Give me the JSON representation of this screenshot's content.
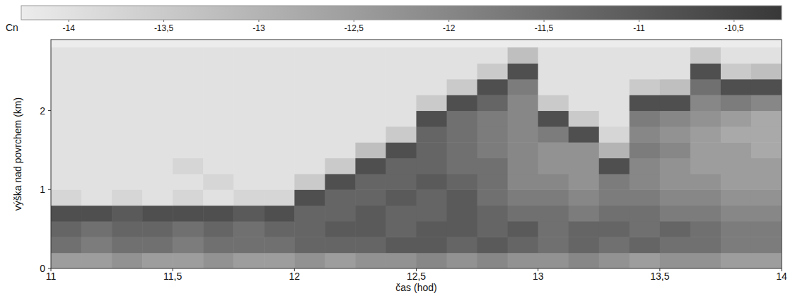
{
  "chart_data": {
    "type": "heatmap",
    "x_label": "čas (hod)",
    "y_label": "výška nad povrchem (km)",
    "color_label": "Cn",
    "xlim": [
      11,
      14
    ],
    "ylim": [
      0,
      2.9
    ],
    "xticks": [
      11,
      {
        "value": 11.5,
        "label": "11,5"
      },
      12,
      {
        "value": 12.5,
        "label": "12,5"
      },
      13,
      {
        "value": 13.5,
        "label": "13,5"
      },
      14
    ],
    "yticks": [
      0,
      1,
      2
    ],
    "color_range": [
      -14.25,
      -10.25
    ],
    "color_ticks": [
      -14,
      {
        "value": -13.5,
        "label": "-13,5"
      },
      -13,
      {
        "value": -12.5,
        "label": "-12,5"
      },
      -12,
      {
        "value": -11.5,
        "label": "-11,5"
      },
      -11,
      {
        "value": -10.5,
        "label": "-10,5"
      }
    ],
    "colors": [
      "#ececec",
      "#383838"
    ],
    "x_edges": [
      11,
      11.125,
      11.25,
      11.375,
      11.5,
      11.625,
      11.75,
      11.875,
      12,
      12.125,
      12.25,
      12.375,
      12.5,
      12.625,
      12.75,
      12.875,
      13,
      13.125,
      13.25,
      13.375,
      13.5,
      13.625,
      13.75,
      13.875,
      14
    ],
    "y_edges": [
      0,
      0.2,
      0.4,
      0.6,
      0.8,
      1.0,
      1.2,
      1.4,
      1.6,
      1.8,
      2.0,
      2.2,
      2.4,
      2.6,
      2.8
    ],
    "cells": [
      [
        -12.5,
        -12.5,
        -12.25,
        -12.5,
        -12.5,
        -12.25,
        -12.5,
        -12.5,
        -12.25,
        -12.5,
        -12.25,
        -12.25,
        -12,
        -12.25,
        -12,
        -12.25,
        -12.25,
        -12,
        -12.25,
        -12.5,
        -12.25,
        -12.25,
        -12.5,
        -12.5
      ],
      [
        -11.5,
        -11.75,
        -11.5,
        -11.5,
        -11.75,
        -11.5,
        -11.5,
        -11.5,
        -11.25,
        -11.25,
        -11.25,
        -11,
        -11,
        -11.25,
        -11,
        -11.25,
        -11.5,
        -11.25,
        -11.5,
        -11.25,
        -11.5,
        -11.5,
        -11.75,
        -11.75
      ],
      [
        -11.25,
        -11.5,
        -11.25,
        -11.25,
        -11.5,
        -11.25,
        -11.5,
        -11.25,
        -11.25,
        -11,
        -11,
        -11.25,
        -11,
        -11,
        -11.25,
        -11,
        -11.5,
        -11.25,
        -11.25,
        -11.5,
        -11.25,
        -11.5,
        -11.75,
        -11.75
      ],
      [
        -10.75,
        -10.75,
        -11,
        -10.75,
        -10.75,
        -10.75,
        -11,
        -10.75,
        -11.25,
        -11.25,
        -11,
        -11.25,
        -11.25,
        -11,
        -11.25,
        -11.5,
        -11.5,
        -11.75,
        -11.5,
        -11.5,
        -11.75,
        -11.75,
        -12,
        -12
      ],
      [
        -13.75,
        -14,
        -13.75,
        -14,
        -13.75,
        -14,
        -13.75,
        -13.75,
        -10.75,
        -11.25,
        -11.25,
        -11,
        -11.25,
        -11,
        -11.5,
        -11.75,
        -11.75,
        -12,
        -11.75,
        -11.75,
        -12,
        -12,
        -12.25,
        -12.25
      ],
      [
        -14,
        -14,
        -14,
        -14,
        -14,
        -13.75,
        -14,
        -14,
        -13.5,
        -10.75,
        -11.25,
        -11.25,
        -11,
        -11.25,
        -11.5,
        -12,
        -12,
        -12.25,
        -11.75,
        -12,
        -12.25,
        -12.25,
        -12.5,
        -12.5
      ],
      [
        -14,
        -14,
        -14,
        -14,
        -13.75,
        -14,
        -14,
        -14,
        -14,
        -13.5,
        -10.75,
        -11.25,
        -11.25,
        -11.5,
        -11.5,
        -12,
        -12.25,
        -12.25,
        -10.75,
        -12,
        -12.25,
        -12.5,
        -12.5,
        -12.5
      ],
      [
        -14,
        -14,
        -14,
        -14,
        -14,
        -14,
        -14,
        -14,
        -14,
        -14,
        -13.25,
        -10.75,
        -11.25,
        -11.5,
        -11.75,
        -12,
        -12.25,
        -12.25,
        -13,
        -11.75,
        -12,
        -12.5,
        -12.5,
        -12.75
      ],
      [
        -14,
        -14,
        -14,
        -14,
        -14,
        -14,
        -14,
        -14,
        -14,
        -14,
        -14,
        -13.5,
        -11.25,
        -11.5,
        -11.75,
        -12,
        -11.75,
        -10.75,
        -13.75,
        -12,
        -12.25,
        -12.5,
        -12.75,
        -12.75
      ],
      [
        -14,
        -14,
        -14,
        -14,
        -14,
        -14,
        -14,
        -14,
        -14,
        -14,
        -14,
        -14,
        -10.75,
        -11.5,
        -11.75,
        -12,
        -10.75,
        -13.5,
        -14,
        -11.75,
        -12,
        -12.25,
        -12.5,
        -12.75
      ],
      [
        -14,
        -14,
        -14,
        -14,
        -14,
        -14,
        -14,
        -14,
        -14,
        -14,
        -14,
        -14,
        -13.5,
        -10.75,
        -11.25,
        -12,
        -13.5,
        -14,
        -14,
        -10.75,
        -10.75,
        -12,
        -11.75,
        -12
      ],
      [
        -14,
        -14,
        -14,
        -14,
        -14,
        -14,
        -14,
        -14,
        -14,
        -14,
        -14,
        -14,
        -14,
        -13.5,
        -10.75,
        -11.75,
        -14,
        -14,
        -14,
        -13.5,
        -13.25,
        -11.5,
        -10.75,
        -10.75
      ],
      [
        -14,
        -14,
        -14,
        -14,
        -14,
        -14,
        -14,
        -14,
        -14,
        -14,
        -14,
        -14,
        -14,
        -14,
        -13.5,
        -10.75,
        -14,
        -14,
        -14,
        -14,
        -14,
        -10.75,
        -13.5,
        -13.25
      ],
      [
        -14,
        -14,
        -14,
        -14,
        -14,
        -14,
        -14,
        -14,
        -14,
        -14,
        -14,
        -14,
        -14,
        -14,
        -14,
        -13.25,
        -14,
        -14,
        -14,
        -14,
        -14,
        -13.5,
        -14,
        -14
      ]
    ]
  }
}
